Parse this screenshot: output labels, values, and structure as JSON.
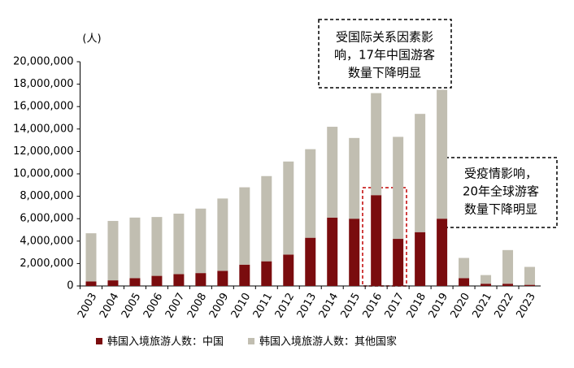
{
  "chart_data": {
    "type": "bar",
    "stacked": true,
    "y_label": "(人)",
    "categories": [
      "2003",
      "2004",
      "2005",
      "2006",
      "2007",
      "2008",
      "2009",
      "2010",
      "2011",
      "2012",
      "2013",
      "2014",
      "2015",
      "2016",
      "2017",
      "2018",
      "2019",
      "2020",
      "2021",
      "2022",
      "2023"
    ],
    "series": [
      {
        "name": "韩国入境旅游人数：中国",
        "color": "#7a0c0e",
        "values": [
          400000,
          500000,
          700000,
          900000,
          1050000,
          1150000,
          1350000,
          1900000,
          2200000,
          2800000,
          4300000,
          6100000,
          6000000,
          8100000,
          4200000,
          4800000,
          6000000,
          700000,
          200000,
          200000,
          100000
        ]
      },
      {
        "name": "韩国入境旅游人数：其他国家",
        "color": "#c1beb1",
        "values": [
          4300000,
          5300000,
          5400000,
          5250000,
          5400000,
          5750000,
          6450000,
          6900000,
          7600000,
          8300000,
          7900000,
          8100000,
          7200000,
          9100000,
          9100000,
          10550000,
          11500000,
          1800000,
          770000,
          3000000,
          1600000
        ]
      }
    ],
    "ylim": [
      0,
      20000000
    ],
    "yticks": [
      0,
      {
        "value": 2000000,
        "label": "2,000,000"
      },
      {
        "value": 4000000,
        "label": "4,000,000"
      },
      {
        "value": 6000000,
        "label": "6,000,000"
      },
      {
        "value": 8000000,
        "label": "8,000,000"
      },
      {
        "value": 10000000,
        "label": "10,000,000"
      },
      {
        "value": 12000000,
        "label": "12,000,000"
      },
      {
        "value": 14000000,
        "label": "14,000,000"
      },
      {
        "value": 16000000,
        "label": "16,000,000"
      },
      {
        "value": 18000000,
        "label": "18,000,000"
      },
      {
        "value": 20000000,
        "label": "20,000,000"
      }
    ],
    "annotations": [
      [
        "受国际关系因素影",
        "响，17年中国游客",
        "数量下降明显"
      ],
      [
        "受疫情影响，",
        "20年全球游客",
        "数量下降明显"
      ]
    ],
    "legend": "bottom"
  }
}
